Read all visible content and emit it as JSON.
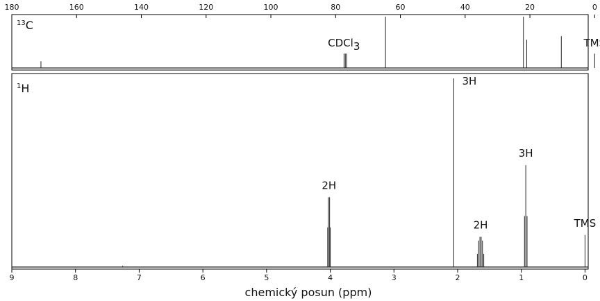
{
  "chart_data": [
    {
      "type": "line",
      "spectrum_label": {
        "base": "C",
        "sup": "13"
      },
      "x_axis": {
        "ticks": [
          180,
          160,
          140,
          120,
          100,
          80,
          60,
          40,
          20,
          0
        ],
        "range": [
          180,
          2
        ],
        "reversed": true,
        "position": "top"
      },
      "peaks": [
        {
          "x": 171.0,
          "height": 0.13
        },
        {
          "x": 77.4,
          "height": 0.28
        },
        {
          "x": 77.0,
          "height": 0.28
        },
        {
          "x": 76.6,
          "height": 0.28
        },
        {
          "x": 64.6,
          "height": 1.0
        },
        {
          "x": 22.0,
          "height": 1.0
        },
        {
          "x": 21.0,
          "height": 0.55
        },
        {
          "x": 10.3,
          "height": 0.62
        },
        {
          "x": 0.0,
          "height": 0.28
        }
      ],
      "annotations": [
        {
          "x": 77.0,
          "label": "CDCl",
          "sub": "3"
        },
        {
          "x": 0.0,
          "label": "TMS"
        }
      ]
    },
    {
      "type": "line",
      "spectrum_label": {
        "base": "H",
        "sup": "1"
      },
      "x_axis": {
        "ticks": [
          9,
          8,
          7,
          6,
          5,
          4,
          3,
          2,
          1,
          0
        ],
        "range": [
          9,
          -0.05
        ],
        "reversed": true,
        "position": "bottom"
      },
      "xlabel": "chemický posun (ppm)",
      "peaks": [
        {
          "x": 7.26,
          "height": 0.006
        },
        {
          "x": 4.04,
          "height": 0.21
        },
        {
          "x": 4.03,
          "height": 0.37
        },
        {
          "x": 4.01,
          "height": 0.37
        },
        {
          "x": 4.0,
          "height": 0.21
        },
        {
          "x": 2.06,
          "height": 1.0
        },
        {
          "x": 1.69,
          "height": 0.07
        },
        {
          "x": 1.67,
          "height": 0.14
        },
        {
          "x": 1.65,
          "height": 0.16
        },
        {
          "x": 1.63,
          "height": 0.16
        },
        {
          "x": 1.61,
          "height": 0.14
        },
        {
          "x": 1.59,
          "height": 0.07
        },
        {
          "x": 0.95,
          "height": 0.27
        },
        {
          "x": 0.93,
          "height": 0.54
        },
        {
          "x": 0.91,
          "height": 0.27
        },
        {
          "x": 0.0,
          "height": 0.17
        }
      ],
      "annotations": [
        {
          "x": 4.02,
          "label": "2H"
        },
        {
          "x": 2.06,
          "label": "3H"
        },
        {
          "x": 1.64,
          "label": "2H"
        },
        {
          "x": 0.93,
          "label": "3H"
        },
        {
          "x": 0.0,
          "label": "TMS"
        }
      ]
    }
  ]
}
